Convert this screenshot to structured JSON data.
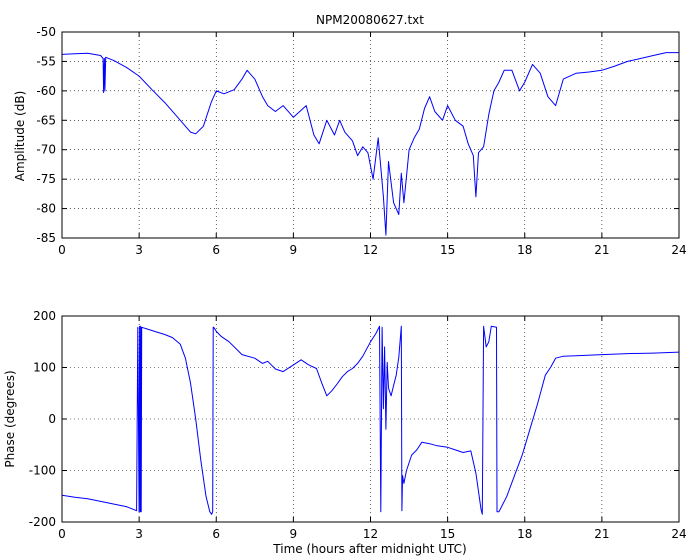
{
  "chart_data": [
    {
      "type": "line",
      "title": "NPM20080627.txt",
      "xlabel": "",
      "ylabel": "Amplitude (dB)",
      "xlim": [
        0,
        24
      ],
      "ylim": [
        -85,
        -50
      ],
      "xticks": [
        0,
        3,
        6,
        9,
        12,
        15,
        18,
        21,
        24
      ],
      "yticks": [
        -85,
        -80,
        -75,
        -70,
        -65,
        -60,
        -55,
        -50
      ],
      "grid": true,
      "color": "#0000ff",
      "series": [
        {
          "x": [
            0,
            0.5,
            1,
            1.5,
            1.6,
            1.62,
            1.65,
            1.67,
            1.7,
            2,
            2.5,
            3,
            3.5,
            4,
            4.5,
            5,
            5.2,
            5.5,
            5.8,
            6,
            6.3,
            6.7,
            7,
            7.2,
            7.5,
            7.8,
            8,
            8.3,
            8.6,
            9,
            9.5,
            9.8,
            10,
            10.3,
            10.6,
            10.8,
            11,
            11.3,
            11.5,
            11.7,
            11.9,
            12.1,
            12.3,
            12.5,
            12.6,
            12.7,
            12.9,
            13.1,
            13.2,
            13.3,
            13.5,
            13.7,
            13.9,
            14.1,
            14.3,
            14.5,
            14.8,
            15,
            15.3,
            15.6,
            15.8,
            16,
            16.1,
            16.2,
            16.4,
            16.6,
            16.8,
            17,
            17.2,
            17.5,
            17.8,
            18,
            18.3,
            18.6,
            18.9,
            19.2,
            19.5,
            20,
            20.5,
            21,
            21.5,
            22,
            22.5,
            23,
            23.5,
            24
          ],
          "y": [
            -53.8,
            -53.7,
            -53.6,
            -54,
            -54.5,
            -60.3,
            -54.5,
            -60,
            -54.3,
            -54.8,
            -56,
            -57.5,
            -59.8,
            -62,
            -64.5,
            -67,
            -67.3,
            -66,
            -62,
            -60,
            -60.5,
            -59.8,
            -58,
            -56.5,
            -58,
            -61,
            -62.5,
            -63.5,
            -62.5,
            -64.5,
            -62.5,
            -67.5,
            -69,
            -65,
            -67.5,
            -65,
            -67,
            -68.5,
            -71,
            -69.5,
            -70.5,
            -75,
            -68,
            -78,
            -84.5,
            -72,
            -79,
            -81,
            -74,
            -79,
            -70,
            -68,
            -66.5,
            -63,
            -61,
            -63.5,
            -65,
            -62.5,
            -65,
            -66,
            -69,
            -71,
            -78,
            -70.5,
            -69.5,
            -64,
            -60,
            -58.5,
            -56.5,
            -56.5,
            -60,
            -58.5,
            -55.5,
            -57,
            -61,
            -62.5,
            -58,
            -57,
            -56.8,
            -56.5,
            -55.8,
            -55,
            -54.5,
            -54,
            -53.5,
            -53.5
          ]
        }
      ]
    },
    {
      "type": "line",
      "title": "",
      "xlabel": "Time (hours after midnight UTC)",
      "ylabel": "Phase (degrees)",
      "xlim": [
        0,
        24
      ],
      "ylim": [
        -200,
        200
      ],
      "xticks": [
        0,
        3,
        6,
        9,
        12,
        15,
        18,
        21,
        24
      ],
      "yticks": [
        -200,
        -100,
        0,
        100,
        200
      ],
      "grid": true,
      "color": "#0000ff",
      "series": [
        {
          "x": [
            0,
            0.5,
            1,
            1.5,
            2,
            2.5,
            2.9,
            2.95,
            3,
            3.02,
            3.04,
            3.06,
            3.08,
            3.1,
            3.3,
            3.6,
            4,
            4.3,
            4.6,
            4.8,
            5,
            5.2,
            5.4,
            5.6,
            5.75,
            5.82,
            5.86,
            5.88,
            5.9,
            6,
            6.2,
            6.5,
            7,
            7.5,
            7.8,
            8,
            8.3,
            8.6,
            9,
            9.3,
            9.6,
            9.9,
            10.1,
            10.3,
            10.5,
            10.7,
            10.9,
            11.1,
            11.3,
            11.5,
            11.7,
            12,
            12.2,
            12.35,
            12.4,
            12.45,
            12.5,
            12.55,
            12.6,
            12.65,
            12.7,
            12.8,
            12.9,
            13,
            13.1,
            13.2,
            13.22,
            13.25,
            13.28,
            13.3,
            13.4,
            13.6,
            13.8,
            14,
            14.3,
            14.6,
            15,
            15.3,
            15.6,
            15.9,
            16.1,
            16.3,
            16.35,
            16.4,
            16.5,
            16.6,
            16.7,
            16.9,
            16.92,
            17,
            17.1,
            17.3,
            17.6,
            17.9,
            18.2,
            18.5,
            18.8,
            19,
            19.2,
            19.5,
            20,
            21,
            22,
            23,
            24
          ],
          "y": [
            -148,
            -152,
            -155,
            -160,
            -165,
            -170,
            -178,
            178,
            -180,
            180,
            -180,
            180,
            -180,
            178,
            175,
            170,
            164,
            158,
            145,
            118,
            70,
            0,
            -80,
            -150,
            -180,
            -185,
            -180,
            178,
            178,
            170,
            160,
            150,
            125,
            118,
            108,
            112,
            97,
            92,
            105,
            115,
            105,
            98,
            70,
            45,
            55,
            68,
            82,
            92,
            98,
            108,
            122,
            150,
            165,
            180,
            -180,
            178,
            20,
            140,
            -20,
            110,
            60,
            45,
            65,
            85,
            120,
            180,
            -178,
            -110,
            -120,
            -125,
            -100,
            -70,
            -60,
            -45,
            -48,
            -52,
            -55,
            -60,
            -65,
            -62,
            -105,
            -175,
            -185,
            180,
            140,
            150,
            180,
            178,
            -180,
            -180,
            -170,
            -150,
            -110,
            -70,
            -20,
            30,
            85,
            100,
            118,
            122,
            123,
            125,
            127,
            128,
            130
          ]
        }
      ]
    }
  ]
}
